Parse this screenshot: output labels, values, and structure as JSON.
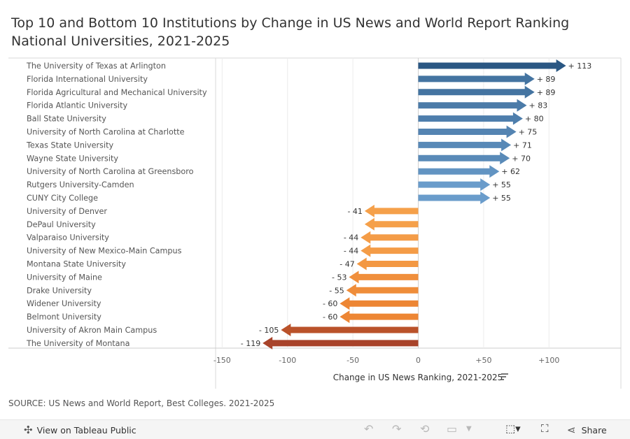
{
  "title_lines": [
    "Top 10 and Bottom 10 Institutions by Change in US News and World Report Ranking",
    "National Universities, 2021-2025"
  ],
  "source": "SOURCE: US News and World Report, Best Colleges. 2021-2025",
  "toolbar": {
    "view_label": "View on Tableau Public",
    "share_label": "Share"
  },
  "chart_data": {
    "type": "bar",
    "orientation": "horizontal",
    "xlabel": "Change in US News Ranking, 2021-2025",
    "xlim": [
      -155,
      155
    ],
    "ticks": [
      -150,
      -100,
      -50,
      0,
      50,
      100
    ],
    "tick_labels": [
      "-150",
      "-100",
      "-50",
      "0",
      "+50",
      "+100"
    ],
    "categories": [
      "The University of Texas at Arlington",
      "Florida International University",
      "Florida Agricultural and Mechanical University",
      "Florida Atlantic University",
      "Ball State University",
      "University of North Carolina at Charlotte",
      "Texas State University",
      "Wayne State University",
      "University of North Carolina at Greensboro",
      "Rutgers University-Camden",
      "CUNY City College",
      "University of Denver",
      "DePaul University",
      "Valparaiso University",
      "University of New Mexico-Main Campus",
      "Montana State University",
      "University of Maine",
      "Drake University",
      "Widener University",
      "Belmont University",
      "University of Akron Main Campus",
      "The University of Montana"
    ],
    "values": [
      113,
      89,
      89,
      83,
      80,
      75,
      71,
      70,
      62,
      55,
      55,
      -41,
      -41,
      -44,
      -44,
      -47,
      -53,
      -55,
      -60,
      -60,
      -105,
      -119
    ],
    "value_labels": [
      "+ 113",
      "+ 89",
      "+ 89",
      "+ 83",
      "+ 80",
      "+ 75",
      "+ 71",
      "+ 70",
      "+ 62",
      "+ 55",
      "+ 55",
      "- 41",
      "",
      "- 44",
      "- 44",
      "- 47",
      "- 53",
      "- 55",
      "- 60",
      "- 60",
      "- 105",
      "- 119"
    ],
    "colors": {
      "positive_dark": "#2a5783",
      "positive_light": "#6a9ccb",
      "negative_light": "#f5a04a",
      "negative_mid": "#ea7a2b",
      "negative_dark": "#a8432a"
    }
  }
}
